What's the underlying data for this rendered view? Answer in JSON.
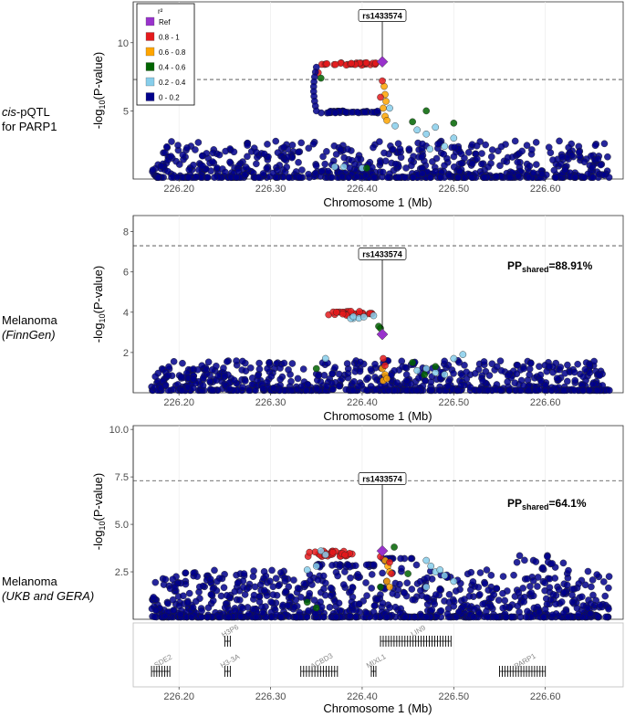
{
  "figure": {
    "colors": {
      "ref": "#9932cc",
      "r2_0.8-1": "#e41a1c",
      "r2_0.6-0.8": "#ffa500",
      "r2_0.4-0.6": "#006400",
      "r2_0.2-0.4": "#87ceeb",
      "r2_0-0.2": "#00008b"
    },
    "legend": {
      "title": "r²",
      "items": [
        "Ref",
        "0.8 - 1",
        "0.6 - 0.8",
        "0.4 - 0.6",
        "0.2 - 0.4",
        "0 - 0.2"
      ]
    },
    "x_axis": {
      "label": "Chromosome 1 (Mb)",
      "range": [
        226.15,
        226.685
      ],
      "ticks": [
        "226.20",
        "226.30",
        "226.40",
        "226.50",
        "226.60"
      ],
      "tick_values": [
        226.2,
        226.3,
        226.4,
        226.5,
        226.6
      ]
    },
    "lead_snp": {
      "id": "rs1433574",
      "position": 226.422
    }
  },
  "chart_data": [
    {
      "type": "scatter",
      "row_label_html": "<tspan font-style='italic'>cis</tspan>-pQTL",
      "row_label_line1": "-pQTL",
      "row_label_line1_italic": "cis",
      "row_label_line2": "for PARP1",
      "ylabel": "-log10(P-value)",
      "ylim": [
        0,
        13
      ],
      "y_ticks": [
        "5",
        "10"
      ],
      "y_tick_values": [
        5,
        10
      ],
      "threshold": 7.3,
      "lead_value": 8.6,
      "pp_shared": "",
      "points_summary": {
        "strong_ld_upper_band": {
          "x_range": [
            226.35,
            226.42
          ],
          "y": 8.4,
          "r2": "0.8-1"
        },
        "weak_ld_lower_band": {
          "x_range": [
            226.35,
            226.42
          ],
          "y": 4.9,
          "r2": "0-0.2"
        },
        "background": {
          "x_range": [
            226.17,
            226.67
          ],
          "y_range": [
            0,
            3
          ],
          "r2": "0-0.2"
        }
      }
    },
    {
      "type": "scatter",
      "row_label_line1": "Melanoma",
      "row_label_line2": "FinnGen",
      "ylabel": "-log10(P-value)",
      "ylim": [
        0,
        8.8
      ],
      "y_ticks": [
        "2",
        "4",
        "6",
        "8"
      ],
      "y_tick_values": [
        2,
        4,
        6,
        8
      ],
      "threshold": 7.3,
      "lead_value": 2.9,
      "pp_shared_label": "PP",
      "pp_shared_sub": "shared",
      "pp_shared_value": "=88.91%"
    },
    {
      "type": "scatter",
      "row_label_line1": "Melanoma",
      "row_label_line2": "UKB and GERA",
      "ylabel": "-log10(P-value)",
      "ylim": [
        0,
        10.2
      ],
      "y_ticks": [
        "2.5",
        "5.0",
        "7.5",
        "10.0"
      ],
      "y_tick_values": [
        2.5,
        5.0,
        7.5,
        10.0
      ],
      "threshold": 7.3,
      "lead_value": 3.6,
      "pp_shared_label": "PP",
      "pp_shared_sub": "shared",
      "pp_shared_value": "=64.1%"
    }
  ],
  "genes": [
    {
      "name": "SDE2",
      "start": 226.17,
      "end": 226.19,
      "track": 2
    },
    {
      "name": "H3P6",
      "start": 226.25,
      "end": 226.256,
      "track": 1
    },
    {
      "name": "H3-3A",
      "start": 226.25,
      "end": 226.256,
      "track": 2
    },
    {
      "name": "ACBD3",
      "start": 226.333,
      "end": 226.373,
      "track": 2
    },
    {
      "name": "MIXL1",
      "start": 226.41,
      "end": 226.415,
      "track": 2
    },
    {
      "name": "LIN9",
      "start": 226.42,
      "end": 226.497,
      "track": 1
    },
    {
      "name": "PARP1",
      "start": 226.55,
      "end": 226.6,
      "track": 2
    }
  ]
}
